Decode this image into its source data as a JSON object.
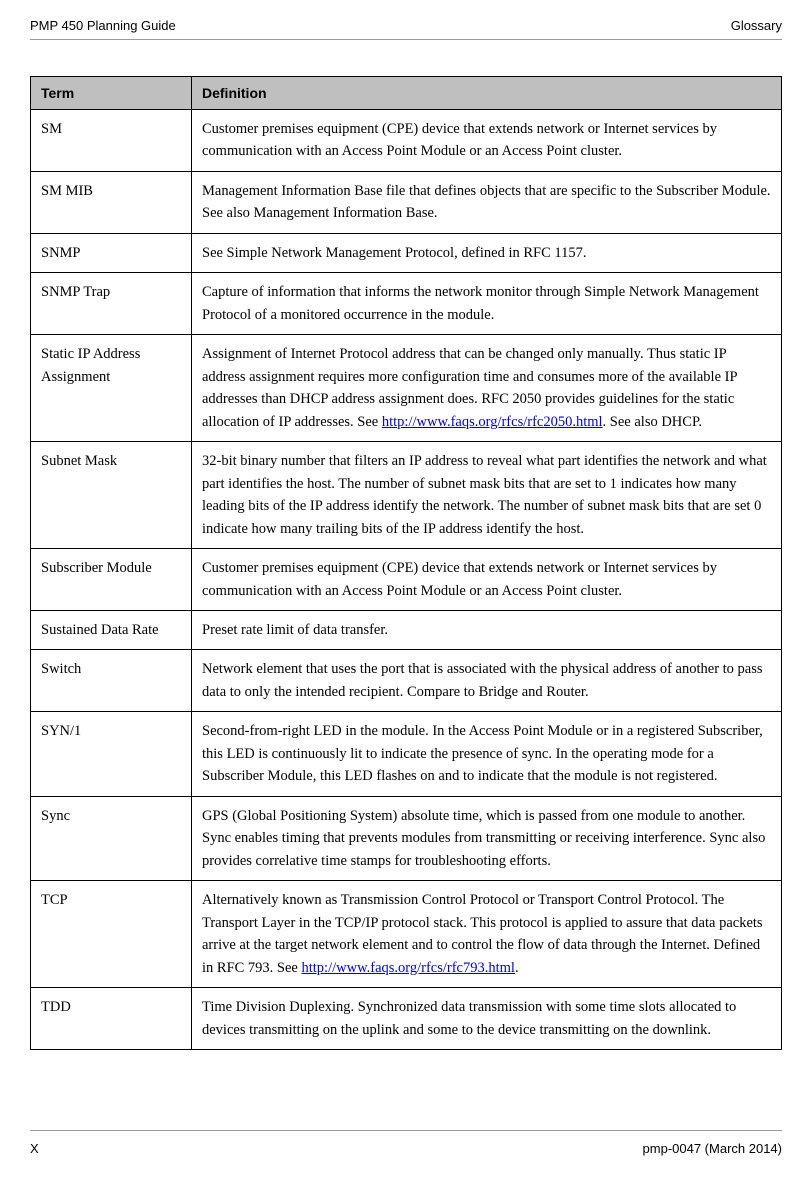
{
  "header": {
    "left": "PMP 450 Planning Guide",
    "right": "Glossary"
  },
  "footer": {
    "left": "X",
    "right": "pmp-0047 (March 2014)"
  },
  "table": {
    "columns": {
      "term": "Term",
      "definition": "Definition"
    },
    "header_bg": "#bfbfbf",
    "border_color": "#000000",
    "rows": [
      {
        "term": "SM",
        "definition": "Customer premises equipment (CPE) device that extends network or Internet services by communication with an Access Point Module or an Access Point cluster."
      },
      {
        "term": "SM MIB",
        "definition": "Management Information Base file that defines objects that are specific to the Subscriber Module. See also Management Information Base."
      },
      {
        "term": "SNMP",
        "definition": "See Simple Network Management Protocol, defined in RFC 1157."
      },
      {
        "term": "SNMP Trap",
        "definition": "Capture of information that informs the network monitor through Simple Network Management Protocol of a monitored occurrence in the module."
      },
      {
        "term": "Static IP Address Assignment",
        "definition_pre": "Assignment of Internet Protocol address that can be changed only manually. Thus static IP address assignment requires more configuration time and consumes more of the available IP addresses than DHCP address assignment does. RFC 2050 provides guidelines for the static allocation of IP addresses. See ",
        "definition_link": "http://www.faqs.org/rfcs/rfc2050.html",
        "definition_post": ". See also DHCP."
      },
      {
        "term": "Subnet Mask",
        "definition": "32-bit binary number that filters an IP address to reveal what part identifies the network and what part identifies the host. The number of subnet mask bits that are set to 1 indicates how many leading bits of the IP address identify the network. The number of subnet mask bits that are set 0 indicate how many trailing bits of the IP address identify the host."
      },
      {
        "term": "Subscriber Module",
        "definition": "Customer premises equipment (CPE) device that extends network or Internet services by communication with an Access Point Module or an Access Point cluster."
      },
      {
        "term": "Sustained Data Rate",
        "definition": "Preset rate limit of data transfer."
      },
      {
        "term": "Switch",
        "definition": "Network element that uses the port that is associated with the physical address of another to pass data to only the intended recipient. Compare to Bridge and Router."
      },
      {
        "term": "SYN/1",
        "definition": "Second-from-right LED in the module. In the Access Point Module or  in a registered Subscriber, this LED is continuously lit to indicate the presence of sync. In the operating mode for a Subscriber Module, this LED flashes on and to indicate that the module is not registered."
      },
      {
        "term": "Sync",
        "definition": "GPS (Global Positioning System) absolute time, which is passed from one module to another. Sync enables timing that prevents modules from transmitting or receiving interference. Sync also provides correlative time stamps for troubleshooting efforts."
      },
      {
        "term": "TCP",
        "definition_pre": "Alternatively known as Transmission Control Protocol or Transport Control Protocol. The Transport Layer in the TCP/IP protocol stack. This protocol is applied to assure that data packets arrive at the target network element and to control the flow of data through the Internet. Defined in RFC 793. See ",
        "definition_link": "http://www.faqs.org/rfcs/rfc793.html",
        "definition_post": "."
      },
      {
        "term": "TDD",
        "definition": "Time Division Duplexing. Synchronized data transmission with some time slots allocated to devices transmitting on the uplink and some to the device transmitting on the downlink."
      }
    ]
  }
}
